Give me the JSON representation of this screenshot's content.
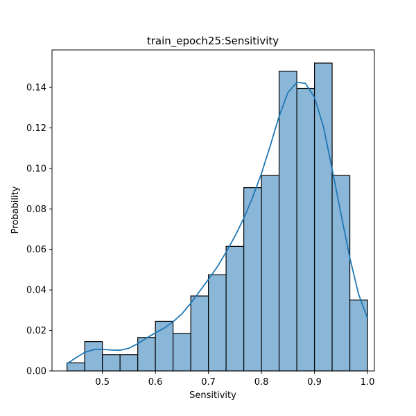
{
  "chart_data": {
    "type": "bar",
    "title": "train_epoch25:Sensitivity",
    "xlabel": "Sensitivity",
    "ylabel": "Probability",
    "xlim": [
      0.405,
      1.013
    ],
    "ylim": [
      0.0,
      0.1585
    ],
    "xticks": [
      {
        "value": 0.5,
        "label": "0.5"
      },
      {
        "value": 0.6,
        "label": "0.6"
      },
      {
        "value": 0.7,
        "label": "0.7"
      },
      {
        "value": 0.8,
        "label": "0.8"
      },
      {
        "value": 0.9,
        "label": "0.9"
      },
      {
        "value": 1.0,
        "label": "1.0"
      }
    ],
    "yticks": [
      {
        "value": 0.0,
        "label": "0.00"
      },
      {
        "value": 0.02,
        "label": "0.02"
      },
      {
        "value": 0.04,
        "label": "0.04"
      },
      {
        "value": 0.06,
        "label": "0.06"
      },
      {
        "value": 0.08,
        "label": "0.08"
      },
      {
        "value": 0.1,
        "label": "0.10"
      },
      {
        "value": 0.12,
        "label": "0.12"
      },
      {
        "value": 0.14,
        "label": "0.14"
      }
    ],
    "bins": [
      {
        "x0": 0.4333,
        "x1": 0.4667,
        "value": 0.004
      },
      {
        "x0": 0.4667,
        "x1": 0.5,
        "value": 0.0145
      },
      {
        "x0": 0.5,
        "x1": 0.5333,
        "value": 0.008
      },
      {
        "x0": 0.5333,
        "x1": 0.5667,
        "value": 0.008
      },
      {
        "x0": 0.5667,
        "x1": 0.6,
        "value": 0.0165
      },
      {
        "x0": 0.6,
        "x1": 0.6333,
        "value": 0.0245
      },
      {
        "x0": 0.6333,
        "x1": 0.6667,
        "value": 0.0185
      },
      {
        "x0": 0.6667,
        "x1": 0.7,
        "value": 0.037
      },
      {
        "x0": 0.7,
        "x1": 0.7333,
        "value": 0.0475
      },
      {
        "x0": 0.7333,
        "x1": 0.7667,
        "value": 0.0615
      },
      {
        "x0": 0.7667,
        "x1": 0.8,
        "value": 0.0905
      },
      {
        "x0": 0.8,
        "x1": 0.8333,
        "value": 0.0965
      },
      {
        "x0": 0.8333,
        "x1": 0.8667,
        "value": 0.148
      },
      {
        "x0": 0.8667,
        "x1": 0.9,
        "value": 0.1395
      },
      {
        "x0": 0.9,
        "x1": 0.9333,
        "value": 0.152
      },
      {
        "x0": 0.9333,
        "x1": 0.9667,
        "value": 0.0965
      },
      {
        "x0": 0.9667,
        "x1": 1.0,
        "value": 0.035
      }
    ],
    "kde": {
      "x": [
        0.433,
        0.45,
        0.467,
        0.483,
        0.5,
        0.517,
        0.533,
        0.55,
        0.567,
        0.583,
        0.6,
        0.617,
        0.633,
        0.65,
        0.667,
        0.683,
        0.7,
        0.717,
        0.733,
        0.75,
        0.767,
        0.783,
        0.8,
        0.817,
        0.833,
        0.85,
        0.867,
        0.883,
        0.9,
        0.917,
        0.933,
        0.95,
        0.967,
        0.983,
        1.0
      ],
      "y": [
        0.0035,
        0.0065,
        0.0092,
        0.0105,
        0.0107,
        0.0103,
        0.0102,
        0.0112,
        0.0135,
        0.0162,
        0.0188,
        0.0212,
        0.0242,
        0.0282,
        0.0335,
        0.0392,
        0.0452,
        0.0515,
        0.0585,
        0.0665,
        0.0755,
        0.0855,
        0.0975,
        0.1115,
        0.1255,
        0.1375,
        0.1425,
        0.142,
        0.135,
        0.1205,
        0.1,
        0.0775,
        0.0555,
        0.038,
        0.026
      ]
    },
    "bar_fill": "#8ab6d7",
    "bar_edge": "#000000",
    "kde_color": "#1f77b4",
    "grid": false
  }
}
